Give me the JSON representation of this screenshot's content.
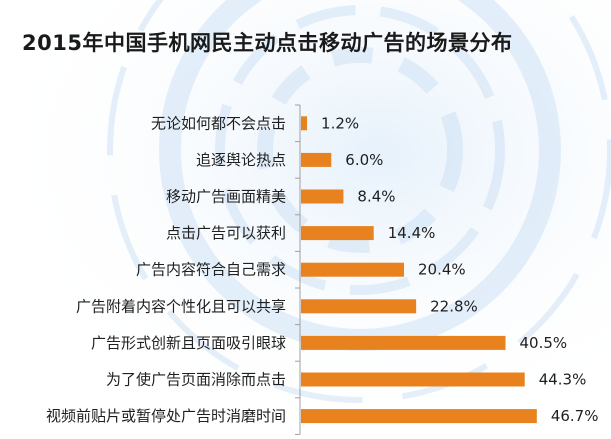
{
  "chart_data": {
    "type": "bar",
    "orientation": "horizontal",
    "title": "2015年中国手机网民主动点击移动广告的场景分布",
    "categories": [
      "无论如何都不会点击",
      "追逐舆论热点",
      "移动广告画面精美",
      "点击广告可以获利",
      "广告内容符合自己需求",
      "广告附着内容个性化且可以共享",
      "广告形式创新且页面吸引眼球",
      "为了使广告页面消除而点击",
      "视频前贴片或暂停处广告时消磨时间"
    ],
    "values": [
      1.2,
      6.0,
      8.4,
      14.4,
      20.4,
      22.8,
      40.5,
      44.3,
      46.7
    ],
    "value_labels": [
      "1.2%",
      "6.0%",
      "8.4%",
      "14.4%",
      "20.4%",
      "22.8%",
      "40.5%",
      "44.3%",
      "46.7%"
    ],
    "unit": "%",
    "xlim": [
      0,
      50
    ],
    "xlabel": "",
    "ylabel": "",
    "grid": false,
    "legend": "none",
    "colors": {
      "bar": "#E8821E",
      "axis": "#a0a0a0"
    }
  }
}
